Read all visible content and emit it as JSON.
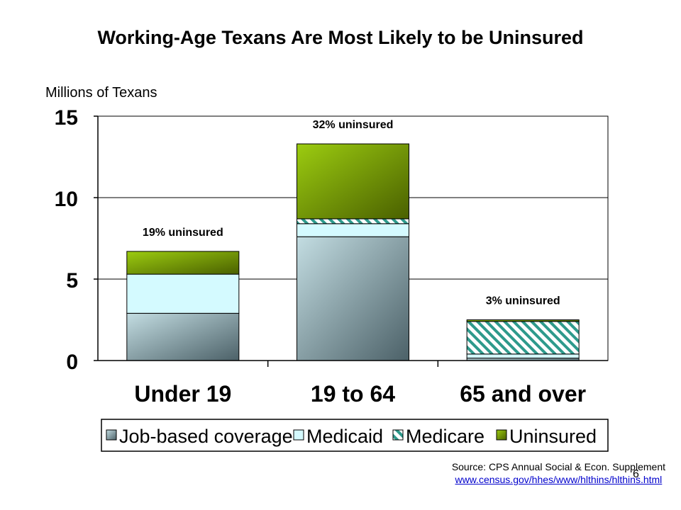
{
  "chart_data": {
    "type": "bar",
    "stacked": true,
    "title": "Working-Age Texans Are Most Likely to be Uninsured",
    "ylabel": "Millions of Texans",
    "ylim": [
      0,
      15
    ],
    "yticks": [
      0,
      5,
      10,
      15
    ],
    "grid": true,
    "legend_position": "bottom",
    "categories": [
      "Under 19",
      "19 to 64",
      "65 and over"
    ],
    "series": [
      {
        "name": "Job-based coverage",
        "values": [
          2.9,
          7.6,
          0.15
        ],
        "color": "#7f9ea6",
        "pattern": "gradient"
      },
      {
        "name": "Medicaid",
        "values": [
          2.4,
          0.8,
          0.25
        ],
        "color": "#d4faff",
        "pattern": "solid"
      },
      {
        "name": "Medicare",
        "values": [
          0.0,
          0.3,
          2.0
        ],
        "color": "#2e9a8c",
        "pattern": "hatch"
      },
      {
        "name": "Uninsured",
        "values": [
          1.4,
          4.6,
          0.1
        ],
        "color": "#7aaa10",
        "pattern": "gradient"
      }
    ],
    "annotations": [
      "19% uninsured",
      "32% uninsured",
      "3% uninsured"
    ]
  },
  "source": {
    "text": "Source: CPS Annual Social & Econ. Supplement",
    "url": "www.census.gov/hhes/www/hlthins/hlthins.html"
  },
  "page_number": "6"
}
